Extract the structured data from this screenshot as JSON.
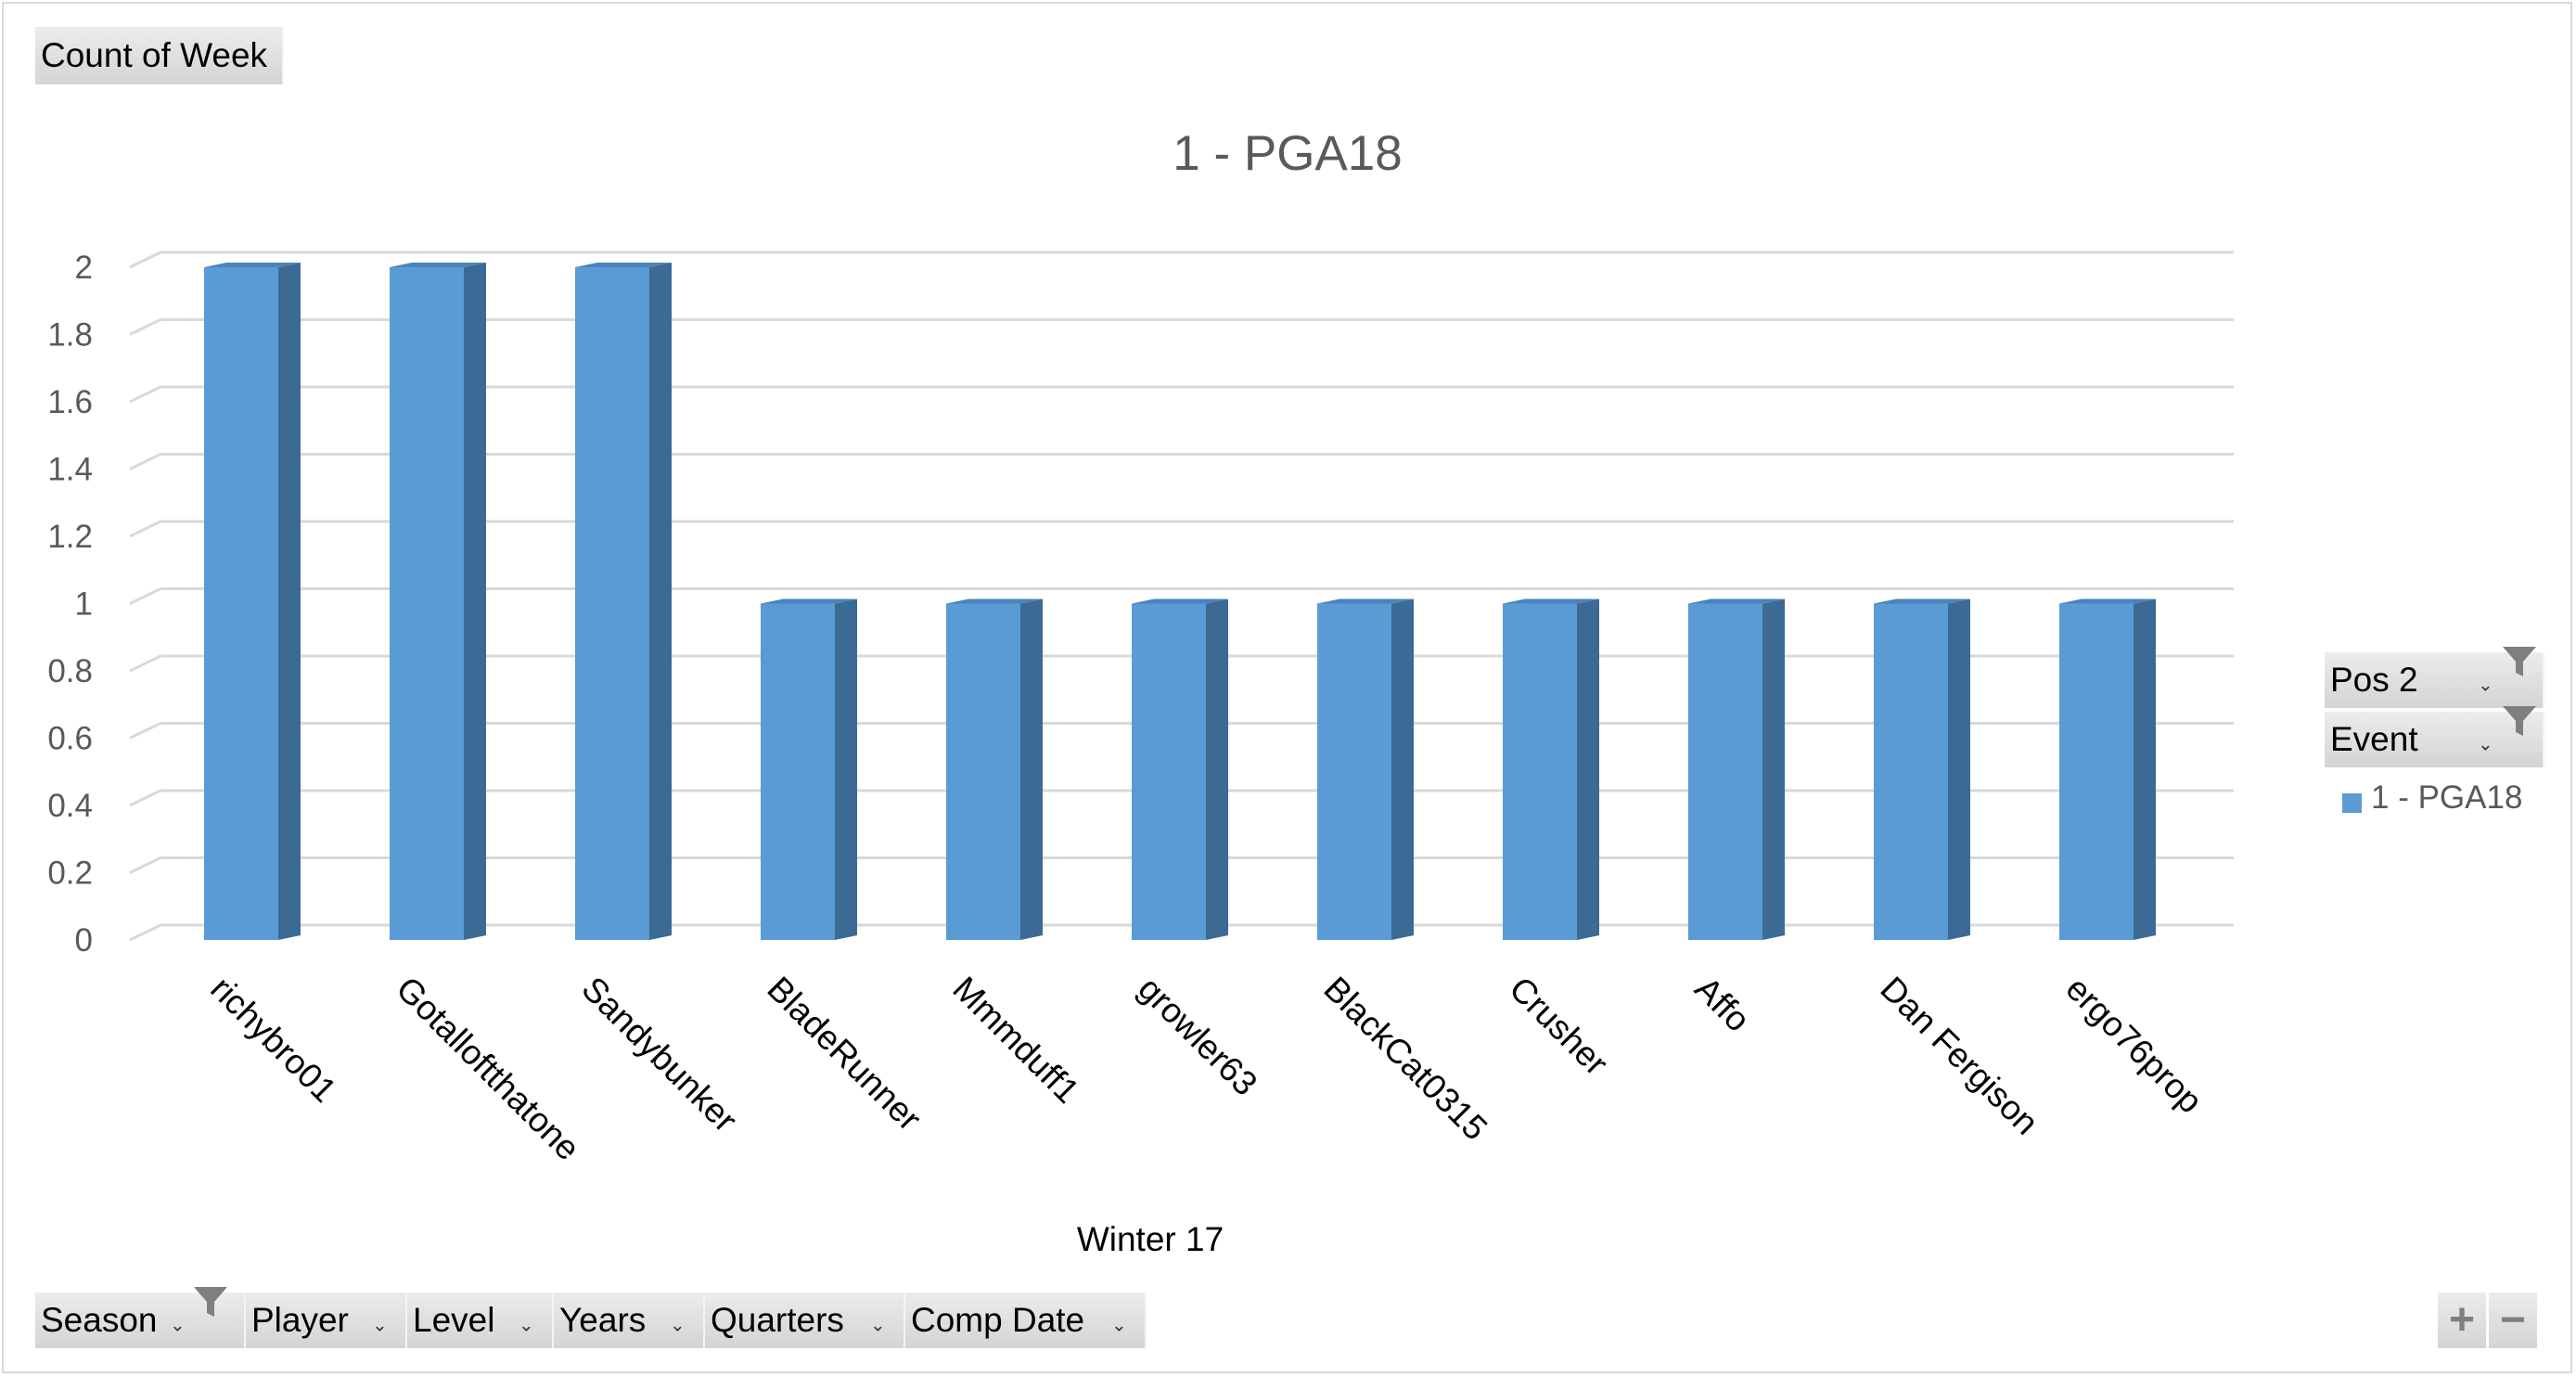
{
  "value_field": {
    "label": "Count of Week"
  },
  "legend_fields": [
    {
      "label": "Pos 2",
      "filtered": true
    },
    {
      "label": "Event",
      "filtered": true
    }
  ],
  "axis_fields": [
    {
      "label": "Season",
      "filtered": true
    },
    {
      "label": "Player",
      "filtered": false
    },
    {
      "label": "Level",
      "filtered": false
    },
    {
      "label": "Years",
      "filtered": false
    },
    {
      "label": "Quarters",
      "filtered": false
    },
    {
      "label": "Comp Date",
      "filtered": false
    }
  ],
  "zoom": {
    "plus": "+",
    "minus": "−"
  },
  "colors": {
    "bar_front": "#5b9bd5",
    "bar_side": "#3b6a94",
    "bar_top": "#4a84bb",
    "gridline": "#d9d9d9",
    "text": "#595959"
  },
  "chart_data": {
    "type": "bar",
    "title": "1 - PGA18",
    "group_label": "Winter 17",
    "categories": [
      "richybro01",
      "Gotalloftthatone",
      "Sandybunker",
      "BladeRunner",
      "Mmmduff1",
      "growler63",
      "BlackCat0315",
      "Crusher",
      "Affo",
      "Dan Fergison",
      "ergo76prop"
    ],
    "series": [
      {
        "name": "1 - PGA18",
        "values": [
          2,
          2,
          2,
          1,
          1,
          1,
          1,
          1,
          1,
          1,
          1
        ]
      }
    ],
    "ylim": [
      0,
      2
    ],
    "yticks": [
      "0",
      "0.2",
      "0.4",
      "0.6",
      "0.8",
      "1",
      "1.2",
      "1.4",
      "1.6",
      "1.8",
      "2"
    ],
    "grid": true,
    "legend_position": "right",
    "three_d": true
  }
}
